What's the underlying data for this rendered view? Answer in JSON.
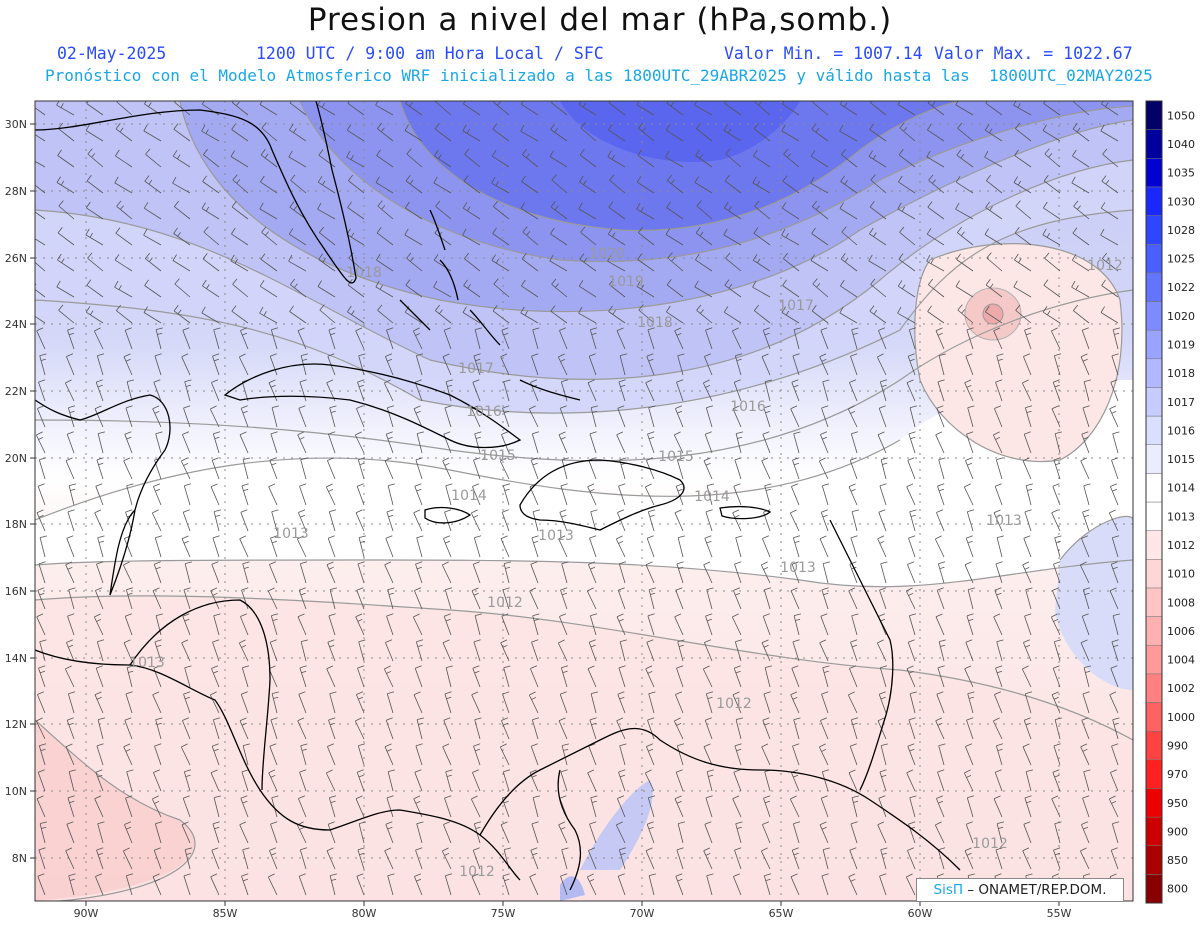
{
  "title": "Presion a nivel del mar (hPa,somb.)",
  "date": "02-May-2025",
  "time": "1200 UTC / 9:00 am Hora Local / SFC",
  "min_label": "Valor Min. = 1007.14",
  "max_label": "Valor Max. = 1022.67",
  "subtitle": "Pronóstico con el Modelo Atmosferico WRF inicializado a las 1800UTC_29ABR2025 y válido hasta las  1800UTC_02MAY2025",
  "credit": {
    "brand": "SisΠ",
    "org": "– ONAMET/REP.DOM."
  },
  "lon_labels": [
    "90W",
    "85W",
    "80W",
    "75W",
    "70W",
    "65W",
    "60W",
    "55W"
  ],
  "lat_labels": [
    "30N",
    "28N",
    "26N",
    "24N",
    "22N",
    "20N",
    "18N",
    "16N",
    "14N",
    "12N",
    "10N",
    "8N"
  ],
  "contour_labels": [
    "1020",
    "1019",
    "1018",
    "1018",
    "1017",
    "1017",
    "1016",
    "1016",
    "1015",
    "1015",
    "1014",
    "1014",
    "1013",
    "1013",
    "1013",
    "1013",
    "1012",
    "1012",
    "1012",
    "1012",
    "1012",
    "1013"
  ],
  "legend": {
    "levels": [
      "1050",
      "1040",
      "1035",
      "1030",
      "1028",
      "1025",
      "1022",
      "1020",
      "1019",
      "1018",
      "1017",
      "1016",
      "1015",
      "1014",
      "1013",
      "1012",
      "1010",
      "1008",
      "1006",
      "1004",
      "1002",
      "1000",
      "990",
      "970",
      "950",
      "900",
      "850",
      "800"
    ],
    "colors": [
      "#000066",
      "#00009e",
      "#0000d2",
      "#1a28ff",
      "#3045ff",
      "#4a5fff",
      "#6375ff",
      "#7d8bff",
      "#9aa4ff",
      "#b2b9ff",
      "#c7ccff",
      "#dadeff",
      "#ebedff",
      "#ffffff",
      "#ffffff",
      "#ffe7e7",
      "#ffd6d6",
      "#ffc4c4",
      "#ffb0b0",
      "#ff9a9a",
      "#ff8080",
      "#ff6262",
      "#ff4242",
      "#ff2020",
      "#ee0000",
      "#cc0000",
      "#aa0000",
      "#880000"
    ]
  }
}
